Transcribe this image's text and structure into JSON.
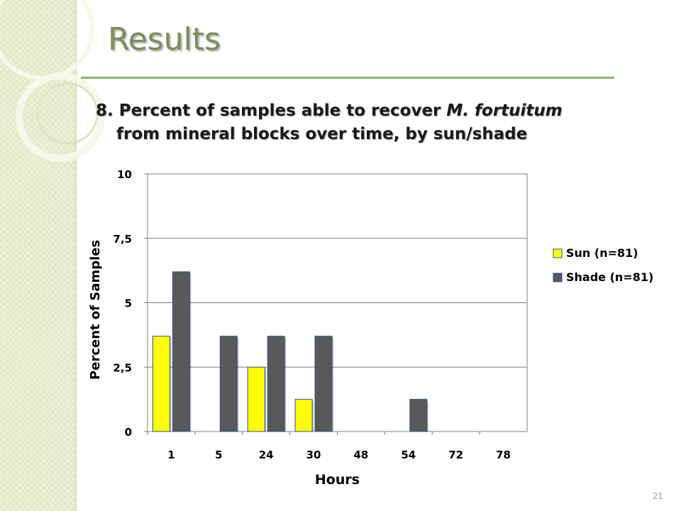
{
  "slide": {
    "title": "Results",
    "subtitle_prefix": "8. Percent of samples able to recover ",
    "subtitle_italic": "M. fortuitum",
    "subtitle_line2": "from mineral blocks over time, by sun/shade",
    "page_number": "21"
  },
  "colors": {
    "sun": "#ffff00",
    "shade": "#595959",
    "title": "#7a8f5c",
    "rule": "#8fb07a"
  },
  "chart_data": {
    "type": "bar",
    "xlabel": "Hours",
    "ylabel": "Percent of Samples",
    "categories": [
      "1",
      "5",
      "24",
      "30",
      "48",
      "54",
      "72",
      "78"
    ],
    "ylim": [
      0,
      10
    ],
    "yticks": [
      "0",
      "2,5",
      "5",
      "7,5",
      "10"
    ],
    "ytick_values": [
      0,
      2.5,
      5,
      7.5,
      10
    ],
    "grid": true,
    "legend_position": "right",
    "series": [
      {
        "name": "Sun (n=81)",
        "color": "#ffff00",
        "values": [
          3.7,
          0,
          2.5,
          1.25,
          0,
          0,
          0,
          0
        ]
      },
      {
        "name": "Shade (n=81)",
        "color": "#595959",
        "values": [
          6.2,
          3.7,
          3.7,
          3.7,
          0,
          1.25,
          0,
          0
        ]
      }
    ]
  }
}
